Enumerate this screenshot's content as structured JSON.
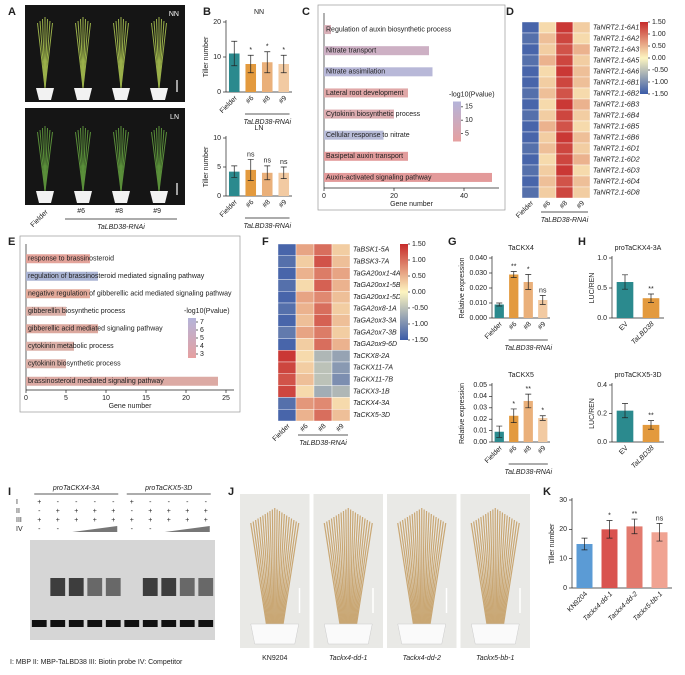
{
  "chart_data": [
    {
      "type": "photo",
      "label": "A",
      "panels": [
        "NN",
        "LN"
      ],
      "categories": [
        "Fielder",
        "#6",
        "#8",
        "#9"
      ],
      "xlabel": "TaLBD38-RNAi"
    },
    {
      "type": "bar",
      "label": "B",
      "title": "NN",
      "ylabel": "Tiller number",
      "xlabel": "TaLBD38-RNAi",
      "categories": [
        "Fielder",
        "#6",
        "#8",
        "#9"
      ],
      "values": [
        11,
        8,
        8.5,
        8
      ],
      "errors": [
        3.5,
        2.5,
        3,
        2.5
      ],
      "annotations": [
        null,
        "*",
        "*",
        "*"
      ],
      "colors": [
        "#2b8a8e",
        "#e39a3e",
        "#eab07a",
        "#f2caa2"
      ],
      "ylim": [
        0,
        20
      ],
      "yticks": [
        0,
        10,
        20
      ]
    },
    {
      "type": "bar",
      "title": "LN",
      "ylabel": "Tiller number",
      "xlabel": "TaLBD38-RNAi",
      "categories": [
        "Fielder",
        "#6",
        "#8",
        "#9"
      ],
      "values": [
        4.2,
        4.5,
        4,
        4
      ],
      "errors": [
        1,
        1.8,
        1.2,
        1
      ],
      "annotations": [
        null,
        "ns",
        "ns",
        "ns"
      ],
      "colors": [
        "#2b8a8e",
        "#e39a3e",
        "#eab07a",
        "#f2caa2"
      ],
      "ylim": [
        0,
        10
      ],
      "yticks": [
        0,
        5,
        10
      ]
    },
    {
      "type": "hbar",
      "label": "C",
      "categories": [
        "Regulation of auxin biosynthetic process",
        "Nitrate transport",
        "Nitrate assimilation",
        "Lateral root development",
        "Cytokinin biosynthetic process",
        "Cellular response to nitrate",
        "Basipetal auxin transport",
        "Auxin-activated signaling pathway"
      ],
      "values": [
        2,
        30,
        31,
        24,
        20,
        17,
        24,
        48
      ],
      "colors": [
        "#d8b0b8",
        "#cdb0c4",
        "#b8b8d8",
        "#e0a8a8",
        "#dcacb0",
        "#b8bcd8",
        "#e29c9c",
        "#e39a9a"
      ],
      "xlim": [
        0,
        50
      ],
      "xticks": [
        0,
        20,
        40
      ],
      "xlabel": "Gene number",
      "legend_title": "-log10(Pvalue)",
      "legend_colors": [
        "#e6a0a0",
        "#b4b4da"
      ],
      "legend_lim": [
        2,
        17
      ],
      "legend_ticks": [
        15,
        10,
        5
      ]
    },
    {
      "type": "heatmap",
      "label": "D",
      "rows": [
        "TaNRT2.1-6A1",
        "TaNRT2.1-6A2",
        "TaNRT2.1-6A3",
        "TaNRT2.1-6A5",
        "TaNRT2.1-6A6",
        "TaNRT2.1-6B1",
        "TaNRT2.1-6B2",
        "TaNRT2.1-6B3",
        "TaNRT2.1-6B4",
        "TaNRT2.1-6B5",
        "TaNRT2.1-6B6",
        "TaNRT2.1-6D1",
        "TaNRT2.1-6D2",
        "TaNRT2.1-6D3",
        "TaNRT2.1-6D4",
        "TaNRT2.1-6D8"
      ],
      "columns": [
        "Fielder",
        "#6",
        "#8",
        "#9"
      ],
      "xlabel": "TaLBD38-RNAi",
      "values": [
        [
          -1.4,
          0.2,
          1.4,
          0.3
        ],
        [
          -1.3,
          0.4,
          1.3,
          0.2
        ],
        [
          -1.4,
          0.3,
          1.2,
          0.5
        ],
        [
          -1.3,
          0.5,
          1.3,
          0.3
        ],
        [
          -1.4,
          0.2,
          1.4,
          0.4
        ],
        [
          -1.4,
          0.3,
          1.3,
          0.4
        ],
        [
          -1.3,
          0.4,
          1.2,
          0.2
        ],
        [
          -1.4,
          0.2,
          1.4,
          0.5
        ],
        [
          -1.3,
          0.3,
          1.3,
          0.3
        ],
        [
          -1.4,
          0.5,
          1.2,
          0.2
        ],
        [
          -1.4,
          0.3,
          1.4,
          0.4
        ],
        [
          -1.3,
          0.4,
          1.3,
          0.3
        ],
        [
          -1.4,
          0.2,
          1.3,
          0.5
        ],
        [
          -1.3,
          0.3,
          1.4,
          0.2
        ],
        [
          -1.4,
          0.4,
          1.2,
          0.4
        ],
        [
          -1.3,
          0.3,
          1.3,
          0.3
        ]
      ],
      "colors": [
        "#3b5ba8",
        "#fdf5c0",
        "#c62b2b"
      ],
      "clim": [
        -1.5,
        1.5
      ],
      "cticks": [
        {
          "value": 1.5,
          "label": "1.50"
        },
        {
          "value": 1,
          "label": "1.00"
        },
        {
          "value": 0.5,
          "label": "0.50"
        },
        {
          "value": 0,
          "label": "0.00"
        },
        {
          "value": -0.5,
          "label": "-0.50"
        },
        {
          "value": -1,
          "label": "-1.00"
        },
        {
          "value": -1.5,
          "label": "-1.50"
        }
      ]
    },
    {
      "type": "hbar",
      "label": "E",
      "categories": [
        "response to brassinosteroid",
        "regulation of brassinosteroid mediated signaling pathway",
        "negative regulation of gibberellic acid mediated signaling pathway",
        "gibberellin biosynthetic process",
        "gibberellic acid mediated signaling pathway",
        "cytokinin metabolic process",
        "cytokinin biosynthetic process",
        "brassinosteroid mediated signaling pathway"
      ],
      "values": [
        8,
        9,
        8,
        5,
        9,
        6,
        5,
        24
      ],
      "colors": [
        "#e3a39a",
        "#aab4d4",
        "#e3aa9a",
        "#dcb0a8",
        "#dca89e",
        "#dcb0a8",
        "#dcb0a8",
        "#dcaaa4"
      ],
      "xlim": [
        0,
        26
      ],
      "xticks": [
        0,
        5,
        10,
        15,
        20,
        25
      ],
      "xlabel": "Gene number",
      "legend_title": "-log10(Pvalue)",
      "legend_colors": [
        "#e6a0a0",
        "#b4b4da"
      ],
      "legend_lim": [
        2.5,
        7.5
      ],
      "legend_ticks": [
        7,
        6,
        5,
        4,
        3
      ]
    },
    {
      "type": "heatmap",
      "label": "F",
      "rows": [
        "TaBSK1-5A",
        "TaBSK3-7A",
        "TaGA20ox1-4A",
        "TaGA20ox1-5B",
        "TaGA20ox1-5D",
        "TaGA2ox8-1A",
        "TaGA2ox3-3A",
        "TaGA2ox7-3B",
        "TaGA2ox9-6D",
        "TaCKX8-2A",
        "TaCKX11-7A",
        "TaCKX11-7B",
        "TaCKX3-1B",
        "TaCKX4-3A",
        "TaCKX5-3D"
      ],
      "columns": [
        "Fielder",
        "#6",
        "#8",
        "#9"
      ],
      "xlabel": "TaLBD38-RNAi",
      "values": [
        [
          -1.4,
          0.6,
          1.0,
          0.3
        ],
        [
          -1.3,
          0.3,
          1.2,
          0.4
        ],
        [
          -1.4,
          0.5,
          0.9,
          0.6
        ],
        [
          -1.3,
          0.2,
          1.1,
          0.5
        ],
        [
          -1.4,
          0.6,
          0.8,
          0.4
        ],
        [
          -1.3,
          0.5,
          1.0,
          0.3
        ],
        [
          -1.4,
          0.4,
          1.1,
          0.4
        ],
        [
          -1.2,
          0.6,
          0.9,
          0.3
        ],
        [
          -1.4,
          0.3,
          1.0,
          0.5
        ],
        [
          1.4,
          0.2,
          -0.6,
          -0.8
        ],
        [
          1.3,
          0.3,
          -0.5,
          -0.9
        ],
        [
          1.2,
          0.4,
          -0.5,
          -1.0
        ],
        [
          1.3,
          0.2,
          -0.7,
          -0.6
        ],
        [
          -1.3,
          0.7,
          0.8,
          0.2
        ],
        [
          -1.4,
          0.5,
          1.0,
          0.4
        ]
      ],
      "colors": [
        "#3b5ba8",
        "#fdf5c0",
        "#c62b2b"
      ],
      "clim": [
        -1.5,
        1.5
      ],
      "highlight_rows": [
        13,
        14
      ],
      "highlight_color": "#2a7fb8",
      "cticks": [
        {
          "value": 1.5,
          "label": "1.50"
        },
        {
          "value": 1,
          "label": "1.00"
        },
        {
          "value": 0.5,
          "label": "0.50"
        },
        {
          "value": 0,
          "label": "0.00"
        },
        {
          "value": -0.5,
          "label": "-0.50"
        },
        {
          "value": -1,
          "label": "-1.00"
        },
        {
          "value": -1.5,
          "label": "-1.50"
        }
      ]
    },
    {
      "type": "bar",
      "label": "G",
      "title": "TaCKX4",
      "ylabel": "Relative expression",
      "xlabel": "TaLBD38-RNAi",
      "categories": [
        "Fielder",
        "#6",
        "#8",
        "#9"
      ],
      "values": [
        0.009,
        0.029,
        0.024,
        0.012
      ],
      "errors": [
        0.001,
        0.002,
        0.005,
        0.003
      ],
      "annotations": [
        null,
        "**",
        "*",
        "ns"
      ],
      "colors": [
        "#2b8a8e",
        "#e39a3e",
        "#eab07a",
        "#f2caa2"
      ],
      "ylim": [
        0,
        0.04
      ],
      "yticks": [
        {
          "value": 0,
          "label": "0.000"
        },
        {
          "value": 0.01,
          "label": "0.010"
        },
        {
          "value": 0.02,
          "label": "0.020"
        },
        {
          "value": 0.03,
          "label": "0.030"
        },
        {
          "value": 0.04,
          "label": "0.040"
        }
      ]
    },
    {
      "type": "bar",
      "title": "TaCKX5",
      "ylabel": "Relative expression",
      "xlabel": "TaLBD38-RNAi",
      "categories": [
        "Fielder",
        "#6",
        "#8",
        "#9"
      ],
      "values": [
        0.009,
        0.023,
        0.036,
        0.021
      ],
      "errors": [
        0.005,
        0.006,
        0.006,
        0.002
      ],
      "annotations": [
        null,
        "*",
        "**",
        "*"
      ],
      "colors": [
        "#2b8a8e",
        "#e39a3e",
        "#eab07a",
        "#f2caa2"
      ],
      "ylim": [
        0,
        0.05
      ],
      "yticks": [
        {
          "value": 0,
          "label": "0.00"
        },
        0.01,
        0.02,
        0.03,
        0.04,
        0.05
      ]
    },
    {
      "type": "bar",
      "label": "H",
      "title": "proTaCKX4-3A",
      "ylabel": "LUC/REN",
      "categories": [
        "EV",
        "TaLBD38"
      ],
      "values": [
        0.6,
        0.33
      ],
      "errors": [
        0.12,
        0.07
      ],
      "annotations": [
        null,
        "**"
      ],
      "colors": [
        "#2b8a8e",
        "#e39a3e"
      ],
      "ylim": [
        0,
        1
      ],
      "yticks": [
        {
          "value": 0,
          "label": "0.0"
        },
        0.5,
        {
          "value": 1,
          "label": "1.0"
        }
      ]
    },
    {
      "type": "bar",
      "title": "proTaCKX5-3D",
      "ylabel": "LUC/REN",
      "categories": [
        "EV",
        "TaLBD38"
      ],
      "values": [
        0.22,
        0.12
      ],
      "errors": [
        0.05,
        0.03
      ],
      "annotations": [
        null,
        "**"
      ],
      "colors": [
        "#2b8a8e",
        "#e39a3e"
      ],
      "ylim": [
        0,
        0.4
      ],
      "yticks": [
        {
          "value": 0,
          "label": "0.0"
        },
        0.2,
        0.4
      ]
    },
    {
      "type": "gel",
      "label": "I",
      "groups": [
        "proTaCKX4-3A",
        "proTaCKX5-3D"
      ],
      "rows": [
        "I",
        "II",
        "III",
        "IV"
      ],
      "signs": [
        [
          "+",
          "-",
          "-",
          "-",
          "-",
          "+",
          "-",
          "-",
          "-",
          "-"
        ],
        [
          "-",
          "+",
          "+",
          "+",
          "+",
          "-",
          "+",
          "+",
          "+",
          "+"
        ],
        [
          "+",
          "+",
          "+",
          "+",
          "+",
          "+",
          "+",
          "+",
          "+",
          "+"
        ],
        [
          "-",
          "-",
          null,
          null,
          null,
          "-",
          "-",
          null,
          null,
          null
        ]
      ],
      "caption": "I: MBP   II: MBP-TaLBD38   III: Biotin probe   IV: Competitor"
    },
    {
      "type": "photo",
      "label": "J",
      "categories": [
        "KN9204",
        "Tackx4-dd-1",
        "Tackx4-dd-2",
        "Tackx5-bb-1"
      ]
    },
    {
      "type": "bar",
      "label": "K",
      "ylabel": "Tiller number",
      "categories": [
        "KN9204",
        "Tackx4-dd-1",
        "Tackx4-dd-2",
        "Tackx5-bb-1"
      ],
      "values": [
        15,
        20,
        21,
        19
      ],
      "errors": [
        2,
        3,
        2.5,
        3
      ],
      "annotations": [
        null,
        "*",
        "**",
        "ns"
      ],
      "colors": [
        "#5b9bd5",
        "#d9534f",
        "#e27a6e",
        "#f0a392"
      ],
      "ylim": [
        0,
        30
      ],
      "yticks": [
        0,
        10,
        20,
        30
      ]
    }
  ]
}
